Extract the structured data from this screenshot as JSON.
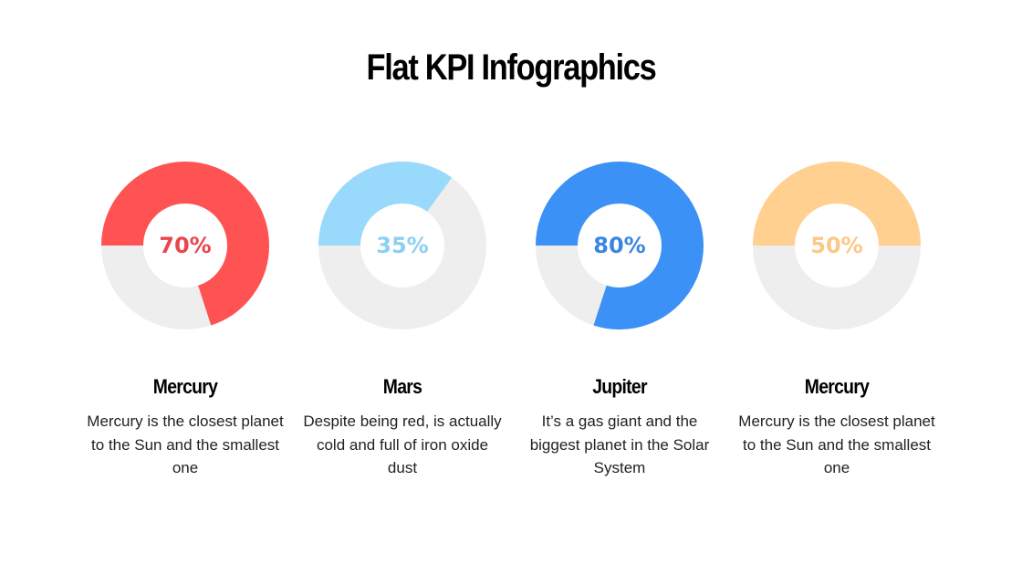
{
  "title": "Flat KPI Infographics",
  "colors": {
    "track": "#EEEEEE",
    "red": "#FF5252",
    "light_blue": "#99D9FB",
    "blue": "#3B91F5",
    "orange": "#FFD08F"
  },
  "kpis": [
    {
      "value": "70%",
      "name": "Mercury",
      "description": "Mercury is the closest planet to the Sun and the smallest one",
      "color": "#FF5252",
      "text_color": "#E9464D"
    },
    {
      "value": "35%",
      "name": "Mars",
      "description": "Despite being red, is actually cold and full of iron oxide dust",
      "color": "#99D9FB",
      "text_color": "#8DCFF3"
    },
    {
      "value": "80%",
      "name": "Jupiter",
      "description": "It’s a gas giant and the biggest planet in the Solar System",
      "color": "#3B91F5",
      "text_color": "#3A86E0"
    },
    {
      "value": "50%",
      "name": "Mercury",
      "description": "Mercury is the closest planet to the Sun and the smallest one",
      "color": "#FFD08F",
      "text_color": "#FCC886"
    }
  ],
  "chart_data": {
    "type": "pie",
    "subtype": "donut",
    "title": "Flat KPI Infographics",
    "categories": [
      "Mercury",
      "Mars",
      "Jupiter",
      "Mercury"
    ],
    "values": [
      70,
      35,
      80,
      50
    ],
    "max": 100,
    "unit": "%",
    "series_colors": [
      "#FF5252",
      "#99D9FB",
      "#3B91F5",
      "#FFD08F"
    ],
    "track_color": "#EEEEEE",
    "start_angle": "9 o'clock, clockwise",
    "legend": "none"
  }
}
